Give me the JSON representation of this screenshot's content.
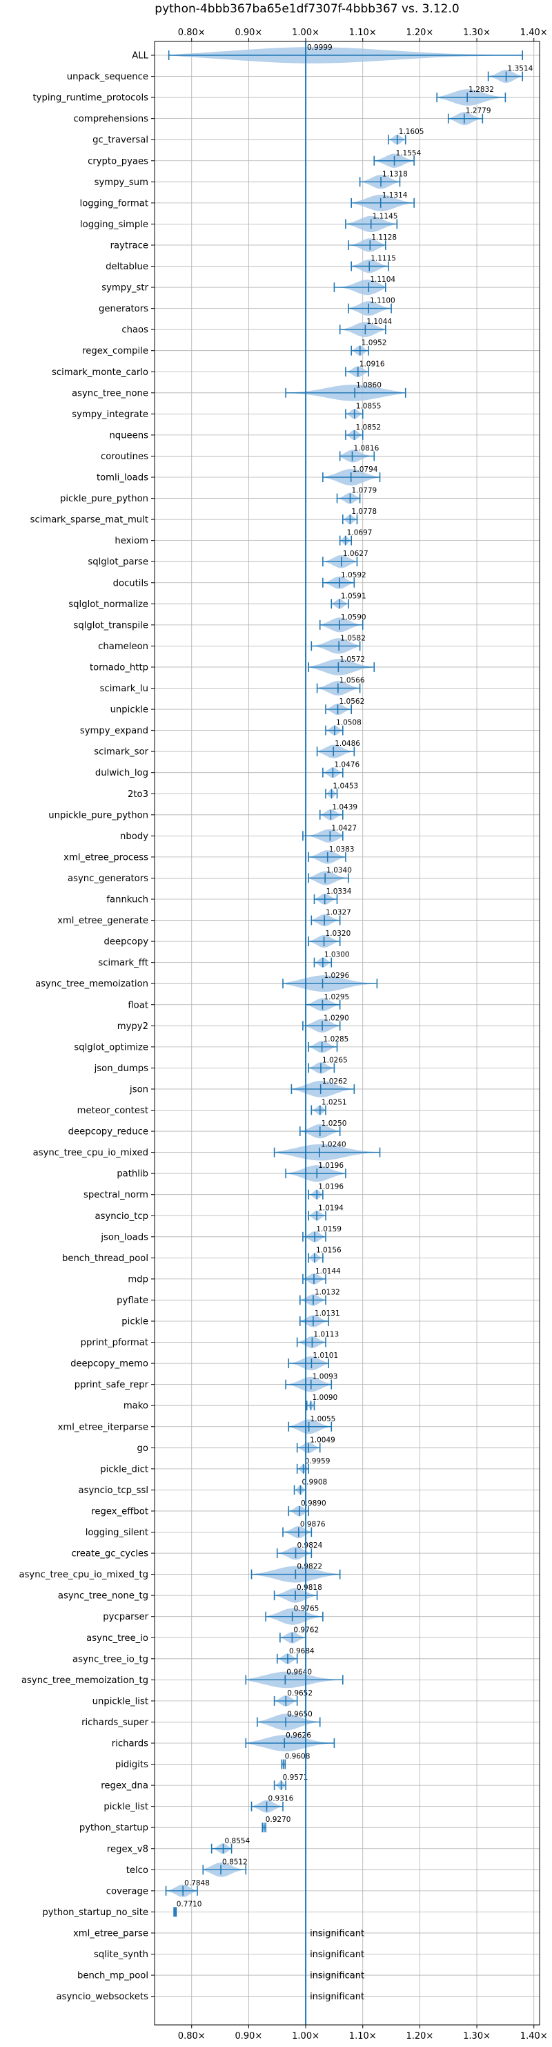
{
  "chart_data": {
    "type": "violin",
    "title": "python-4bbb367ba65e1df7307f-4bbb367 vs. 3.12.0",
    "xlim": [
      0.735,
      1.41
    ],
    "xticks": [
      0.8,
      0.9,
      1.0,
      1.1,
      1.2,
      1.3,
      1.4
    ],
    "xtick_labels": [
      "0.80×",
      "0.90×",
      "1.00×",
      "1.10×",
      "1.20×",
      "1.30×",
      "1.40×"
    ],
    "reference_line": 1.0,
    "grid": true,
    "insignificant_label": "insignificant",
    "rows": [
      {
        "name": "ALL",
        "value": 0.9999,
        "label": "0.9999",
        "lo": 0.76,
        "hi": 1.38
      },
      {
        "name": "unpack_sequence",
        "value": 1.3514,
        "label": "1.3514",
        "lo": 1.32,
        "hi": 1.38
      },
      {
        "name": "typing_runtime_protocols",
        "value": 1.2832,
        "label": "1.2832",
        "lo": 1.23,
        "hi": 1.35
      },
      {
        "name": "comprehensions",
        "value": 1.2779,
        "label": "1.2779",
        "lo": 1.25,
        "hi": 1.31
      },
      {
        "name": "gc_traversal",
        "value": 1.1605,
        "label": "1.1605",
        "lo": 1.145,
        "hi": 1.175
      },
      {
        "name": "crypto_pyaes",
        "value": 1.1554,
        "label": "1.1554",
        "lo": 1.12,
        "hi": 1.19
      },
      {
        "name": "sympy_sum",
        "value": 1.1318,
        "label": "1.1318",
        "lo": 1.095,
        "hi": 1.165
      },
      {
        "name": "logging_format",
        "value": 1.1314,
        "label": "1.1314",
        "lo": 1.08,
        "hi": 1.19
      },
      {
        "name": "logging_simple",
        "value": 1.1145,
        "label": "1.1145",
        "lo": 1.07,
        "hi": 1.16
      },
      {
        "name": "raytrace",
        "value": 1.1128,
        "label": "1.1128",
        "lo": 1.075,
        "hi": 1.14
      },
      {
        "name": "deltablue",
        "value": 1.1115,
        "label": "1.1115",
        "lo": 1.08,
        "hi": 1.145
      },
      {
        "name": "sympy_str",
        "value": 1.1104,
        "label": "1.1104",
        "lo": 1.05,
        "hi": 1.14
      },
      {
        "name": "generators",
        "value": 1.11,
        "label": "1.1100",
        "lo": 1.075,
        "hi": 1.15
      },
      {
        "name": "chaos",
        "value": 1.1044,
        "label": "1.1044",
        "lo": 1.06,
        "hi": 1.14
      },
      {
        "name": "regex_compile",
        "value": 1.0952,
        "label": "1.0952",
        "lo": 1.08,
        "hi": 1.11
      },
      {
        "name": "scimark_monte_carlo",
        "value": 1.0916,
        "label": "1.0916",
        "lo": 1.07,
        "hi": 1.11
      },
      {
        "name": "async_tree_none",
        "value": 1.086,
        "label": "1.0860",
        "lo": 0.965,
        "hi": 1.175
      },
      {
        "name": "sympy_integrate",
        "value": 1.0855,
        "label": "1.0855",
        "lo": 1.07,
        "hi": 1.1
      },
      {
        "name": "nqueens",
        "value": 1.0852,
        "label": "1.0852",
        "lo": 1.07,
        "hi": 1.1
      },
      {
        "name": "coroutines",
        "value": 1.0816,
        "label": "1.0816",
        "lo": 1.06,
        "hi": 1.12
      },
      {
        "name": "tomli_loads",
        "value": 1.0794,
        "label": "1.0794",
        "lo": 1.03,
        "hi": 1.13
      },
      {
        "name": "pickle_pure_python",
        "value": 1.0779,
        "label": "1.0779",
        "lo": 1.055,
        "hi": 1.095
      },
      {
        "name": "scimark_sparse_mat_mult",
        "value": 1.0778,
        "label": "1.0778",
        "lo": 1.065,
        "hi": 1.09
      },
      {
        "name": "hexiom",
        "value": 1.0697,
        "label": "1.0697",
        "lo": 1.06,
        "hi": 1.08
      },
      {
        "name": "sqlglot_parse",
        "value": 1.0627,
        "label": "1.0627",
        "lo": 1.03,
        "hi": 1.09
      },
      {
        "name": "docutils",
        "value": 1.0592,
        "label": "1.0592",
        "lo": 1.03,
        "hi": 1.085
      },
      {
        "name": "sqlglot_normalize",
        "value": 1.0591,
        "label": "1.0591",
        "lo": 1.045,
        "hi": 1.075
      },
      {
        "name": "sqlglot_transpile",
        "value": 1.059,
        "label": "1.0590",
        "lo": 1.025,
        "hi": 1.1
      },
      {
        "name": "chameleon",
        "value": 1.0582,
        "label": "1.0582",
        "lo": 1.01,
        "hi": 1.095
      },
      {
        "name": "tornado_http",
        "value": 1.0572,
        "label": "1.0572",
        "lo": 1.005,
        "hi": 1.12
      },
      {
        "name": "scimark_lu",
        "value": 1.0566,
        "label": "1.0566",
        "lo": 1.02,
        "hi": 1.095
      },
      {
        "name": "unpickle",
        "value": 1.0562,
        "label": "1.0562",
        "lo": 1.035,
        "hi": 1.08
      },
      {
        "name": "sympy_expand",
        "value": 1.0508,
        "label": "1.0508",
        "lo": 1.035,
        "hi": 1.065
      },
      {
        "name": "scimark_sor",
        "value": 1.0486,
        "label": "1.0486",
        "lo": 1.02,
        "hi": 1.085
      },
      {
        "name": "dulwich_log",
        "value": 1.0476,
        "label": "1.0476",
        "lo": 1.03,
        "hi": 1.065
      },
      {
        "name": "2to3",
        "value": 1.0453,
        "label": "1.0453",
        "lo": 1.035,
        "hi": 1.055
      },
      {
        "name": "unpickle_pure_python",
        "value": 1.0439,
        "label": "1.0439",
        "lo": 1.025,
        "hi": 1.065
      },
      {
        "name": "nbody",
        "value": 1.0427,
        "label": "1.0427",
        "lo": 0.995,
        "hi": 1.065
      },
      {
        "name": "xml_etree_process",
        "value": 1.0383,
        "label": "1.0383",
        "lo": 1.005,
        "hi": 1.07
      },
      {
        "name": "async_generators",
        "value": 1.034,
        "label": "1.0340",
        "lo": 1.005,
        "hi": 1.075
      },
      {
        "name": "fannkuch",
        "value": 1.0334,
        "label": "1.0334",
        "lo": 1.015,
        "hi": 1.055
      },
      {
        "name": "xml_etree_generate",
        "value": 1.0327,
        "label": "1.0327",
        "lo": 1.01,
        "hi": 1.06
      },
      {
        "name": "deepcopy",
        "value": 1.032,
        "label": "1.0320",
        "lo": 1.005,
        "hi": 1.06
      },
      {
        "name": "scimark_fft",
        "value": 1.03,
        "label": "1.0300",
        "lo": 1.015,
        "hi": 1.045
      },
      {
        "name": "async_tree_memoization",
        "value": 1.0296,
        "label": "1.0296",
        "lo": 0.96,
        "hi": 1.125
      },
      {
        "name": "float",
        "value": 1.0295,
        "label": "1.0295",
        "lo": 1.0,
        "hi": 1.06
      },
      {
        "name": "mypy2",
        "value": 1.029,
        "label": "1.0290",
        "lo": 0.995,
        "hi": 1.06
      },
      {
        "name": "sqlglot_optimize",
        "value": 1.0285,
        "label": "1.0285",
        "lo": 1.005,
        "hi": 1.055
      },
      {
        "name": "json_dumps",
        "value": 1.0265,
        "label": "1.0265",
        "lo": 1.005,
        "hi": 1.05
      },
      {
        "name": "json",
        "value": 1.0262,
        "label": "1.0262",
        "lo": 0.975,
        "hi": 1.085
      },
      {
        "name": "meteor_contest",
        "value": 1.0251,
        "label": "1.0251",
        "lo": 1.01,
        "hi": 1.035
      },
      {
        "name": "deepcopy_reduce",
        "value": 1.025,
        "label": "1.0250",
        "lo": 0.99,
        "hi": 1.06
      },
      {
        "name": "async_tree_cpu_io_mixed",
        "value": 1.024,
        "label": "1.0240",
        "lo": 0.945,
        "hi": 1.13
      },
      {
        "name": "pathlib",
        "value": 1.0196,
        "label": "1.0196",
        "lo": 0.965,
        "hi": 1.07
      },
      {
        "name": "spectral_norm",
        "value": 1.0196,
        "label": "1.0196",
        "lo": 1.005,
        "hi": 1.03
      },
      {
        "name": "asyncio_tcp",
        "value": 1.0194,
        "label": "1.0194",
        "lo": 1.005,
        "hi": 1.035
      },
      {
        "name": "json_loads",
        "value": 1.0159,
        "label": "1.0159",
        "lo": 0.995,
        "hi": 1.035
      },
      {
        "name": "bench_thread_pool",
        "value": 1.0156,
        "label": "1.0156",
        "lo": 1.005,
        "hi": 1.03
      },
      {
        "name": "mdp",
        "value": 1.0144,
        "label": "1.0144",
        "lo": 0.995,
        "hi": 1.035
      },
      {
        "name": "pyflate",
        "value": 1.0132,
        "label": "1.0132",
        "lo": 0.99,
        "hi": 1.035
      },
      {
        "name": "pickle",
        "value": 1.0131,
        "label": "1.0131",
        "lo": 0.99,
        "hi": 1.04
      },
      {
        "name": "pprint_pformat",
        "value": 1.0113,
        "label": "1.0113",
        "lo": 0.985,
        "hi": 1.035
      },
      {
        "name": "deepcopy_memo",
        "value": 1.0101,
        "label": "1.0101",
        "lo": 0.97,
        "hi": 1.04
      },
      {
        "name": "pprint_safe_repr",
        "value": 1.0093,
        "label": "1.0093",
        "lo": 0.965,
        "hi": 1.045
      },
      {
        "name": "mako",
        "value": 1.009,
        "label": "1.0090",
        "lo": 1.002,
        "hi": 1.015
      },
      {
        "name": "xml_etree_iterparse",
        "value": 1.0055,
        "label": "1.0055",
        "lo": 0.97,
        "hi": 1.045
      },
      {
        "name": "go",
        "value": 1.0049,
        "label": "1.0049",
        "lo": 0.985,
        "hi": 1.025
      },
      {
        "name": "pickle_dict",
        "value": 0.9959,
        "label": "0.9959",
        "lo": 0.985,
        "hi": 1.005
      },
      {
        "name": "asyncio_tcp_ssl",
        "value": 0.9908,
        "label": "0.9908",
        "lo": 0.98,
        "hi": 1.0
      },
      {
        "name": "regex_effbot",
        "value": 0.989,
        "label": "0.9890",
        "lo": 0.97,
        "hi": 1.005
      },
      {
        "name": "logging_silent",
        "value": 0.9876,
        "label": "0.9876",
        "lo": 0.96,
        "hi": 1.01
      },
      {
        "name": "create_gc_cycles",
        "value": 0.9824,
        "label": "0.9824",
        "lo": 0.95,
        "hi": 1.01
      },
      {
        "name": "async_tree_cpu_io_mixed_tg",
        "value": 0.9822,
        "label": "0.9822",
        "lo": 0.905,
        "hi": 1.06
      },
      {
        "name": "async_tree_none_tg",
        "value": 0.9818,
        "label": "0.9818",
        "lo": 0.945,
        "hi": 1.02
      },
      {
        "name": "pycparser",
        "value": 0.9765,
        "label": "0.9765",
        "lo": 0.93,
        "hi": 1.03
      },
      {
        "name": "async_tree_io",
        "value": 0.9762,
        "label": "0.9762",
        "lo": 0.955,
        "hi": 1.0
      },
      {
        "name": "async_tree_io_tg",
        "value": 0.9684,
        "label": "0.9684",
        "lo": 0.95,
        "hi": 0.985
      },
      {
        "name": "async_tree_memoization_tg",
        "value": 0.964,
        "label": "0.9640",
        "lo": 0.895,
        "hi": 1.065
      },
      {
        "name": "unpickle_list",
        "value": 0.9652,
        "label": "0.9652",
        "lo": 0.945,
        "hi": 0.985
      },
      {
        "name": "richards_super",
        "value": 0.965,
        "label": "0.9650",
        "lo": 0.915,
        "hi": 1.025
      },
      {
        "name": "richards",
        "value": 0.9626,
        "label": "0.9626",
        "lo": 0.895,
        "hi": 1.05
      },
      {
        "name": "pidigits",
        "value": 0.9608,
        "label": "0.9608",
        "lo": 0.958,
        "hi": 0.964
      },
      {
        "name": "regex_dna",
        "value": 0.9571,
        "label": "0.9571",
        "lo": 0.945,
        "hi": 0.965
      },
      {
        "name": "pickle_list",
        "value": 0.9316,
        "label": "0.9316",
        "lo": 0.905,
        "hi": 0.96
      },
      {
        "name": "python_startup",
        "value": 0.927,
        "label": "0.9270",
        "lo": 0.924,
        "hi": 0.93
      },
      {
        "name": "regex_v8",
        "value": 0.8554,
        "label": "0.8554",
        "lo": 0.835,
        "hi": 0.87
      },
      {
        "name": "telco",
        "value": 0.8512,
        "label": "0.8512",
        "lo": 0.82,
        "hi": 0.895
      },
      {
        "name": "coverage",
        "value": 0.7848,
        "label": "0.7848",
        "lo": 0.755,
        "hi": 0.81
      },
      {
        "name": "python_startup_no_site",
        "value": 0.771,
        "label": "0.7710",
        "lo": 0.769,
        "hi": 0.773
      },
      {
        "name": "xml_etree_parse",
        "value": null,
        "insignificant": true
      },
      {
        "name": "sqlite_synth",
        "value": null,
        "insignificant": true
      },
      {
        "name": "bench_mp_pool",
        "value": null,
        "insignificant": true
      },
      {
        "name": "asyncio_websockets",
        "value": null,
        "insignificant": true
      }
    ]
  },
  "colors": {
    "violin_fill": "#a9c9e8",
    "marker": "#1f77b4",
    "grid": "#b0b0b0",
    "axis": "#000000",
    "background": "#ffffff"
  }
}
